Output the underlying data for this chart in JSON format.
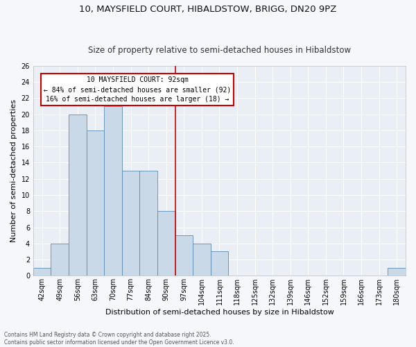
{
  "title1": "10, MAYSFIELD COURT, HIBALDSTOW, BRIGG, DN20 9PZ",
  "title2": "Size of property relative to semi-detached houses in Hibaldstow",
  "xlabel": "Distribution of semi-detached houses by size in Hibaldstow",
  "ylabel": "Number of semi-detached properties",
  "categories": [
    "42sqm",
    "49sqm",
    "56sqm",
    "63sqm",
    "70sqm",
    "77sqm",
    "84sqm",
    "90sqm",
    "97sqm",
    "104sqm",
    "111sqm",
    "118sqm",
    "125sqm",
    "132sqm",
    "139sqm",
    "146sqm",
    "152sqm",
    "159sqm",
    "166sqm",
    "173sqm",
    "180sqm"
  ],
  "values": [
    1,
    4,
    20,
    18,
    21,
    13,
    13,
    8,
    5,
    4,
    3,
    0,
    0,
    0,
    0,
    0,
    0,
    0,
    0,
    0,
    1
  ],
  "bar_color": "#c9d9e8",
  "bar_edge_color": "#5a8ab0",
  "vline_x_index": 7,
  "vline_color": "#cc0000",
  "annotation_title": "10 MAYSFIELD COURT: 92sqm",
  "annotation_line1": "← 84% of semi-detached houses are smaller (92)",
  "annotation_line2": "16% of semi-detached houses are larger (18) →",
  "annotation_box_color": "#ffffff",
  "annotation_box_edge": "#cc0000",
  "footer1": "Contains HM Land Registry data © Crown copyright and database right 2025.",
  "footer2": "Contains public sector information licensed under the Open Government Licence v3.0.",
  "ylim": [
    0,
    26
  ],
  "yticks": [
    0,
    2,
    4,
    6,
    8,
    10,
    12,
    14,
    16,
    18,
    20,
    22,
    24,
    26
  ],
  "bg_color": "#eaeff5",
  "fig_bg_color": "#f5f7fa",
  "grid_color": "#ffffff",
  "title_fontsize": 9.5,
  "subtitle_fontsize": 8.5,
  "axis_label_fontsize": 8,
  "tick_fontsize": 7,
  "annotation_fontsize": 7,
  "footer_fontsize": 5.5
}
